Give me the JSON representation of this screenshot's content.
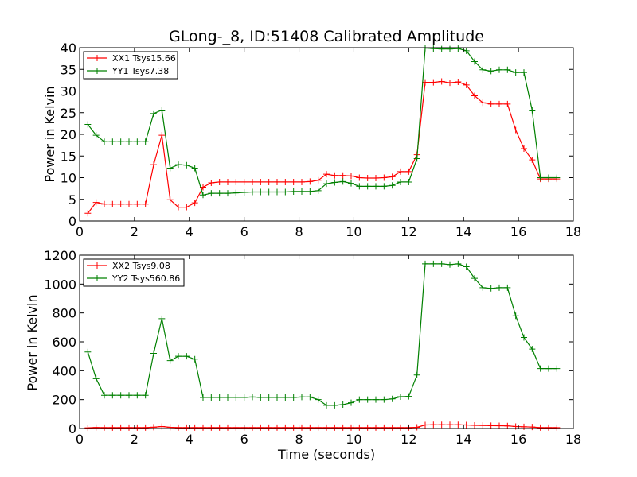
{
  "chart_data": [
    {
      "type": "line",
      "title": "GLong-_8, ID:51408 Calibrated Amplitude",
      "xlabel": "",
      "ylabel": "Power in Kelvin",
      "xlim": [
        0,
        18
      ],
      "ylim": [
        0,
        40
      ],
      "xticks": [
        "0",
        "2",
        "4",
        "6",
        "8",
        "10",
        "12",
        "14",
        "16",
        "18"
      ],
      "yticks": [
        "0",
        "5",
        "10",
        "15",
        "20",
        "25",
        "30",
        "35",
        "40"
      ],
      "grid": false,
      "legend": "top-left",
      "x": [
        0.3,
        0.6,
        0.9,
        1.2,
        1.5,
        1.8,
        2.1,
        2.4,
        2.7,
        3.0,
        3.3,
        3.6,
        3.9,
        4.2,
        4.5,
        4.8,
        5.1,
        5.4,
        5.7,
        6.0,
        6.3,
        6.6,
        6.9,
        7.2,
        7.5,
        7.8,
        8.1,
        8.4,
        8.7,
        9.0,
        9.3,
        9.6,
        9.9,
        10.2,
        10.5,
        10.8,
        11.1,
        11.4,
        11.7,
        12.0,
        12.3,
        12.6,
        12.9,
        13.2,
        13.5,
        13.8,
        14.1,
        14.4,
        14.7,
        15.0,
        15.3,
        15.6,
        15.9,
        16.2,
        16.5,
        16.8,
        17.1,
        17.4
      ],
      "series": [
        {
          "name": "XX1 Tsys15.66",
          "color": "#ff0000",
          "values": [
            1.8,
            4.3,
            3.9,
            3.9,
            3.9,
            3.9,
            3.9,
            3.9,
            13.0,
            19.8,
            4.9,
            3.2,
            3.2,
            4.2,
            7.8,
            8.8,
            9.0,
            9.0,
            9.0,
            9.0,
            9.0,
            9.0,
            9.0,
            9.0,
            9.0,
            9.0,
            9.0,
            9.1,
            9.4,
            10.8,
            10.5,
            10.5,
            10.4,
            10.0,
            9.9,
            9.9,
            10.0,
            10.2,
            11.4,
            11.4,
            15.3,
            32.0,
            32.0,
            32.2,
            31.9,
            32.1,
            31.4,
            28.9,
            27.3,
            27.0,
            27.0,
            27.0,
            21.0,
            16.7,
            14.1,
            9.7,
            9.7,
            9.7
          ]
        },
        {
          "name": "YY1 Tsys7.38",
          "color": "#008000",
          "values": [
            22.3,
            19.8,
            18.3,
            18.3,
            18.3,
            18.3,
            18.3,
            18.3,
            24.8,
            25.6,
            12.2,
            13.0,
            12.9,
            12.2,
            6.0,
            6.4,
            6.4,
            6.4,
            6.5,
            6.6,
            6.7,
            6.7,
            6.7,
            6.7,
            6.7,
            6.8,
            6.8,
            6.8,
            7.0,
            8.6,
            8.9,
            9.1,
            8.7,
            8.0,
            8.0,
            8.0,
            8.0,
            8.2,
            9.0,
            9.0,
            14.4,
            39.9,
            39.8,
            39.7,
            39.7,
            39.8,
            39.3,
            36.8,
            34.9,
            34.6,
            34.9,
            34.9,
            34.3,
            34.3,
            25.6,
            10.0,
            10.0,
            10.0
          ]
        }
      ]
    },
    {
      "type": "line",
      "title": "",
      "xlabel": "Time (seconds)",
      "ylabel": "Power in Kelvin",
      "xlim": [
        0,
        18
      ],
      "ylim": [
        0,
        1200
      ],
      "xticks": [
        "0",
        "2",
        "4",
        "6",
        "8",
        "10",
        "12",
        "14",
        "16",
        "18"
      ],
      "yticks": [
        "0",
        "200",
        "400",
        "600",
        "800",
        "1000",
        "1200"
      ],
      "grid": false,
      "legend": "top-left",
      "x": [
        0.3,
        0.6,
        0.9,
        1.2,
        1.5,
        1.8,
        2.1,
        2.4,
        2.7,
        3.0,
        3.3,
        3.6,
        3.9,
        4.2,
        4.5,
        4.8,
        5.1,
        5.4,
        5.7,
        6.0,
        6.3,
        6.6,
        6.9,
        7.2,
        7.5,
        7.8,
        8.1,
        8.4,
        8.7,
        9.0,
        9.3,
        9.6,
        9.9,
        10.2,
        10.5,
        10.8,
        11.1,
        11.4,
        11.7,
        12.0,
        12.3,
        12.6,
        12.9,
        13.2,
        13.5,
        13.8,
        14.1,
        14.4,
        14.7,
        15.0,
        15.3,
        15.6,
        15.9,
        16.2,
        16.5,
        16.8,
        17.1,
        17.4
      ],
      "series": [
        {
          "name": "XX2 Tsys9.08",
          "color": "#ff0000",
          "values": [
            5,
            7,
            6,
            6,
            6,
            6,
            6,
            6,
            9,
            14,
            8,
            6,
            6,
            6,
            6,
            6,
            6,
            6,
            6,
            6,
            6,
            6,
            6,
            6,
            6,
            6,
            6,
            6,
            6,
            6,
            6,
            6,
            6,
            6,
            6,
            6,
            6,
            6,
            6,
            6,
            8,
            25,
            26,
            26,
            26,
            26,
            25,
            22,
            21,
            20,
            19,
            18,
            14,
            12,
            10,
            6,
            6,
            6
          ]
        },
        {
          "name": "YY2 Tsys560.86",
          "color": "#008000",
          "values": [
            530,
            345,
            230,
            230,
            230,
            230,
            230,
            230,
            520,
            760,
            470,
            500,
            500,
            480,
            215,
            215,
            215,
            215,
            215,
            215,
            218,
            215,
            215,
            215,
            215,
            215,
            218,
            218,
            200,
            160,
            160,
            165,
            178,
            200,
            200,
            200,
            200,
            205,
            220,
            222,
            370,
            1140,
            1140,
            1140,
            1135,
            1140,
            1120,
            1040,
            975,
            970,
            975,
            975,
            780,
            630,
            550,
            415,
            415,
            415
          ]
        }
      ]
    }
  ]
}
